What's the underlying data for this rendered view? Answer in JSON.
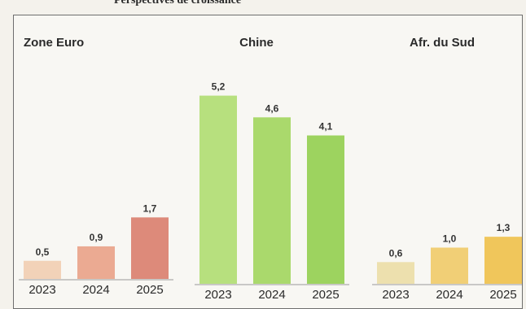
{
  "page": {
    "top_text": "Perspectives de croissance"
  },
  "chart_data": [
    {
      "type": "bar",
      "title": "Zone Euro",
      "categories": [
        "2023",
        "2024",
        "2025"
      ],
      "values": [
        0.5,
        0.9,
        1.7
      ],
      "value_labels": [
        "0,5",
        "0,9",
        "1,7"
      ],
      "colors": [
        "#f2d2b8",
        "#ebaa92",
        "#dd8a7a"
      ],
      "ylim": [
        0,
        5.6
      ],
      "grid": false
    },
    {
      "type": "bar",
      "title": "Chine",
      "categories": [
        "2023",
        "2024",
        "2025"
      ],
      "values": [
        5.2,
        4.6,
        4.1
      ],
      "value_labels": [
        "5,2",
        "4,6",
        "4,1"
      ],
      "colors": [
        "#b7e07e",
        "#aad96c",
        "#9dd35f"
      ],
      "ylim": [
        0,
        5.6
      ],
      "grid": false
    },
    {
      "type": "bar",
      "title": "Afr. du Sud",
      "categories": [
        "2023",
        "2024",
        "2025"
      ],
      "values": [
        0.6,
        1.0,
        1.3
      ],
      "value_labels": [
        "0,6",
        "1,0",
        "1,3"
      ],
      "colors": [
        "#ede0ae",
        "#f1cf76",
        "#f0c65b"
      ],
      "ylim": [
        0,
        5.6
      ],
      "grid": false
    }
  ]
}
